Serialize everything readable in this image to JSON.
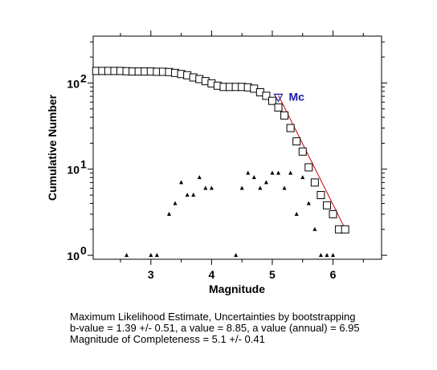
{
  "chart_data": {
    "type": "scatter",
    "xlabel": "Magnitude",
    "ylabel": "Cumulative Number",
    "xlim": [
      2.05,
      6.8
    ],
    "ylim": [
      0.9,
      350
    ],
    "yscale": "log",
    "xticks": [
      3,
      4,
      5,
      6
    ],
    "yticks": [
      {
        "value": 1,
        "base": "10",
        "exp": "0"
      },
      {
        "value": 10,
        "base": "10",
        "exp": "1"
      },
      {
        "value": 100,
        "base": "10",
        "exp": "2"
      }
    ],
    "grid": false,
    "series": [
      {
        "marker": "open-square",
        "x": [
          2.1,
          2.2,
          2.3,
          2.4,
          2.5,
          2.6,
          2.7,
          2.8,
          2.9,
          3.0,
          3.1,
          3.2,
          3.3,
          3.4,
          3.5,
          3.6,
          3.7,
          3.8,
          3.9,
          4.0,
          4.1,
          4.2,
          4.3,
          4.4,
          4.5,
          4.6,
          4.7,
          4.8,
          4.9,
          5.0,
          5.1,
          5.2,
          5.3,
          5.4,
          5.5,
          5.6,
          5.7,
          5.8,
          5.9,
          6.0,
          6.1,
          6.2
        ],
        "y": [
          138,
          138,
          138,
          138,
          138,
          137,
          136,
          136,
          136,
          136,
          135,
          135,
          134,
          131,
          127,
          123,
          116,
          111,
          105,
          99,
          93,
          90,
          90,
          90,
          90,
          89,
          86,
          78,
          71,
          62,
          52,
          42,
          30,
          21,
          16,
          10.5,
          7,
          5,
          3.8,
          3,
          2,
          2
        ]
      },
      {
        "marker": "filled-triangle",
        "x": [
          2.6,
          3.0,
          3.1,
          3.3,
          3.4,
          3.5,
          3.6,
          3.7,
          3.8,
          3.9,
          4.0,
          4.4,
          4.5,
          4.6,
          4.7,
          4.8,
          4.9,
          5.0,
          5.1,
          5.2,
          5.3,
          5.4,
          5.5,
          5.6,
          5.7,
          5.8,
          5.9,
          6.0,
          6.1,
          6.2
        ],
        "y": [
          1,
          1,
          1,
          3,
          4,
          7,
          5,
          5,
          8,
          6,
          6,
          1,
          6,
          9,
          8,
          6,
          7,
          9,
          9,
          6,
          9,
          3,
          8,
          4,
          2,
          1,
          1,
          1,
          2,
          2
        ]
      }
    ],
    "fit_line": {
      "x": [
        5.1,
        6.22
      ],
      "y": [
        72,
        1.9
      ],
      "color": "#cc0000"
    },
    "mc_marker": {
      "x": 5.1,
      "y": 68,
      "label": "Mc",
      "color": "#1a1aa6"
    }
  },
  "stats": {
    "line1": "Maximum Likelihood Estimate, Uncertainties by bootstrapping",
    "line2": "b-value = 1.39 +/- 0.51,  a value = 8.85,  a value (annual) = 6.95",
    "line3": "Magnitude of Completeness = 5.1 +/- 0.41"
  }
}
